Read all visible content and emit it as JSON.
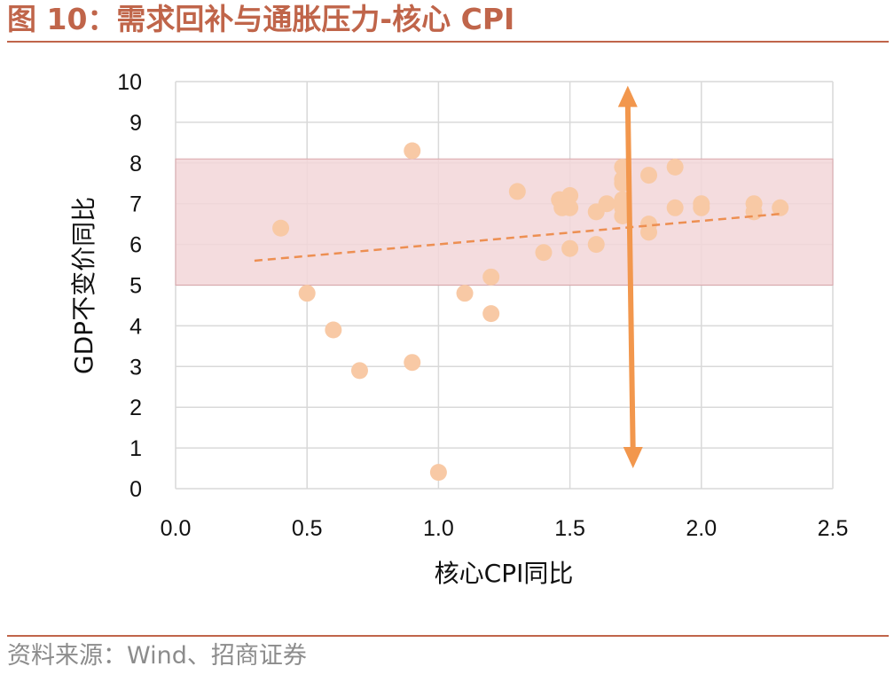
{
  "title": "图 10：需求回补与通胀压力-核心 CPI",
  "source": "资料来源：Wind、招商证券",
  "chart_data": {
    "type": "scatter",
    "xlabel": "核心CPI同比",
    "ylabel": "GDP不变价同比",
    "xlim": [
      0,
      2.5
    ],
    "ylim": [
      0,
      10
    ],
    "x_ticks": [
      "0.0",
      "0.5",
      "1.0",
      "1.5",
      "2.0",
      "2.5"
    ],
    "y_ticks": [
      "0",
      "1",
      "2",
      "3",
      "4",
      "5",
      "6",
      "7",
      "8",
      "9",
      "10"
    ],
    "grid": true,
    "band": {
      "y_from": 5.0,
      "y_to": 8.1,
      "color": "#f2d6d8"
    },
    "trendline": {
      "x": [
        0.3,
        2.3
      ],
      "y": [
        5.6,
        6.75
      ],
      "color": "#ed8f52"
    },
    "arrow": {
      "x_top": 1.72,
      "y_top": 9.9,
      "x_bottom": 1.74,
      "y_bottom": 0.5,
      "color": "#f2974d"
    },
    "point_color": "#f8c9a5",
    "points": [
      {
        "x": 0.4,
        "y": 6.4
      },
      {
        "x": 0.5,
        "y": 4.8
      },
      {
        "x": 0.6,
        "y": 3.9
      },
      {
        "x": 0.7,
        "y": 2.9
      },
      {
        "x": 0.9,
        "y": 8.3
      },
      {
        "x": 0.9,
        "y": 3.1
      },
      {
        "x": 1.0,
        "y": 0.4
      },
      {
        "x": 1.1,
        "y": 4.8
      },
      {
        "x": 1.2,
        "y": 5.2
      },
      {
        "x": 1.2,
        "y": 4.3
      },
      {
        "x": 1.3,
        "y": 7.3
      },
      {
        "x": 1.4,
        "y": 5.8
      },
      {
        "x": 1.46,
        "y": 7.1
      },
      {
        "x": 1.47,
        "y": 6.9
      },
      {
        "x": 1.5,
        "y": 7.2
      },
      {
        "x": 1.5,
        "y": 6.9
      },
      {
        "x": 1.5,
        "y": 5.9
      },
      {
        "x": 1.6,
        "y": 6.8
      },
      {
        "x": 1.6,
        "y": 6.0
      },
      {
        "x": 1.64,
        "y": 7.0
      },
      {
        "x": 1.7,
        "y": 7.9
      },
      {
        "x": 1.7,
        "y": 7.6
      },
      {
        "x": 1.7,
        "y": 7.5
      },
      {
        "x": 1.7,
        "y": 7.1
      },
      {
        "x": 1.7,
        "y": 6.9
      },
      {
        "x": 1.7,
        "y": 6.7
      },
      {
        "x": 1.8,
        "y": 7.7
      },
      {
        "x": 1.8,
        "y": 6.5
      },
      {
        "x": 1.8,
        "y": 6.3
      },
      {
        "x": 1.9,
        "y": 7.9
      },
      {
        "x": 1.9,
        "y": 6.9
      },
      {
        "x": 2.0,
        "y": 7.0
      },
      {
        "x": 2.0,
        "y": 6.9
      },
      {
        "x": 2.2,
        "y": 7.0
      },
      {
        "x": 2.2,
        "y": 6.8
      },
      {
        "x": 2.3,
        "y": 6.9
      }
    ]
  }
}
